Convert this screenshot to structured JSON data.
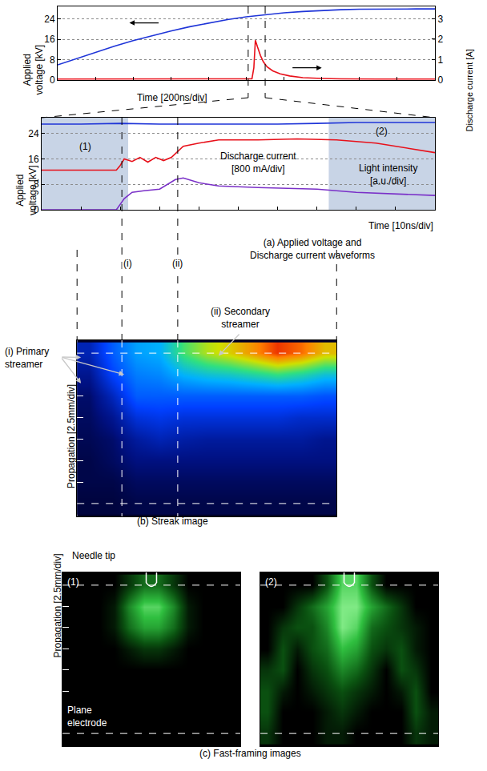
{
  "chart_data": [
    {
      "type": "line",
      "x_label": "Time [200ns/div]",
      "y_label": "Applied voltage [kV]",
      "y2_label": "Discharge current [A]",
      "xlim": [
        0,
        2000
      ],
      "xticks": [
        0,
        200,
        400,
        600,
        800,
        1000,
        1200,
        1400,
        1600,
        1800,
        2000
      ],
      "ylim": [
        0,
        29
      ],
      "yticks": [
        0,
        8,
        16,
        24
      ],
      "y2lim": [
        0,
        3.6
      ],
      "y2ticks": [
        0,
        1,
        2,
        3
      ],
      "grid": true,
      "tick_labels": "y",
      "vlines": [
        1010,
        1100
      ],
      "series": [
        {
          "color": "#1f35d8",
          "x": [
            0,
            100,
            200,
            300,
            400,
            500,
            600,
            700,
            800,
            900,
            1000,
            1100,
            1200,
            1300,
            1400,
            1500,
            1600,
            1700,
            1800,
            1900,
            2000
          ],
          "values": [
            6,
            8.5,
            11,
            13.3,
            15.5,
            17.5,
            19.3,
            21,
            22.5,
            23.8,
            24.9,
            25.8,
            26.5,
            27,
            27.4,
            27.7,
            27.9,
            28,
            28,
            28,
            28
          ]
        },
        {
          "color": "#e8101a",
          "axis": "y2",
          "x": [
            0,
            200,
            400,
            600,
            800,
            1000,
            1030,
            1040,
            1048,
            1060,
            1075,
            1090,
            1110,
            1140,
            1180,
            1230,
            1300,
            1400,
            1500,
            1700,
            2000
          ],
          "values": [
            0.05,
            0.05,
            0.05,
            0.05,
            0.05,
            0.05,
            0.06,
            0.6,
            1.95,
            1.6,
            1.2,
            0.9,
            0.65,
            0.45,
            0.3,
            0.2,
            0.12,
            0.08,
            0.06,
            0.05,
            0.05
          ]
        }
      ]
    },
    {
      "type": "line",
      "x_label": "Time [10ns/div]",
      "y_label": "Applied voltage [kV]",
      "caption": "(a) Applied voltage and Discharge current waveforms",
      "xlim": [
        0,
        100
      ],
      "xticks": [
        0,
        10,
        20,
        30,
        40,
        50,
        60,
        70,
        80,
        90,
        100
      ],
      "ylim": [
        0,
        29
      ],
      "yticks": [
        0,
        8,
        16,
        24
      ],
      "grid": true,
      "tick_labels": "y",
      "annotations": [
        "Discharge current [800 mA/div]",
        "Light intensity [a.u./div]"
      ],
      "regions": [
        {
          "label": "(1)",
          "x": [
            0,
            22
          ]
        },
        {
          "label": "(2)",
          "x": [
            73,
            100
          ]
        }
      ],
      "events": [
        {
          "label": "(i)",
          "x": 20.4
        },
        {
          "label": "(ii)",
          "x": 34.6
        }
      ],
      "series": [
        {
          "color": "#1f35d8",
          "x": [
            0,
            10,
            20,
            30,
            40,
            50,
            60,
            70,
            80,
            90,
            100
          ],
          "values": [
            27,
            27,
            27.2,
            27,
            27,
            27,
            27,
            27.2,
            27.5,
            27.5,
            27.5
          ]
        },
        {
          "color": "#e8101a",
          "x": [
            0,
            19,
            20,
            21,
            23,
            25,
            27,
            29,
            31,
            33,
            36,
            40,
            45,
            55,
            65,
            75,
            85,
            100
          ],
          "values": [
            12.5,
            12.5,
            14,
            16,
            15.2,
            16.5,
            15,
            16.5,
            15.5,
            16.5,
            20,
            21,
            22,
            22,
            22.3,
            22,
            21,
            18
          ]
        },
        {
          "color": "#7a30c8",
          "x": [
            0,
            19,
            21,
            23,
            26,
            30,
            34,
            36,
            40,
            45,
            55,
            70,
            80,
            90,
            100
          ],
          "values": [
            0,
            0,
            3.5,
            5.5,
            6,
            6.5,
            9.5,
            10,
            8.5,
            7.5,
            7,
            6.5,
            5.5,
            5,
            4.5
          ]
        }
      ]
    },
    {
      "type": "heatmap",
      "caption": "(b) Streak image",
      "y_label": "Propagation [2.5mm/div]",
      "annotations": [
        "(i) Primary streamer",
        "(ii) Secondary streamer"
      ],
      "xlim": [
        9,
        75
      ],
      "ylim": [
        19,
        -1.5
      ],
      "yticks": [
        5,
        7.5,
        10,
        12.5,
        15
      ],
      "tick_labels": false,
      "electrodes": [
        0,
        17.5
      ],
      "x": [
        12,
        18,
        24,
        30,
        36,
        42,
        48,
        54,
        60,
        66,
        72
      ],
      "y": [
        0,
        2.5,
        5,
        7.5,
        10,
        12.5,
        15,
        17.5
      ],
      "z": [
        [
          0.15,
          0.3,
          0.42,
          0.45,
          0.62,
          0.72,
          0.78,
          0.86,
          0.95,
          0.9,
          0.8
        ],
        [
          0.1,
          0.25,
          0.36,
          0.38,
          0.46,
          0.5,
          0.52,
          0.56,
          0.6,
          0.56,
          0.5
        ],
        [
          0.06,
          0.16,
          0.3,
          0.3,
          0.3,
          0.3,
          0.3,
          0.3,
          0.3,
          0.3,
          0.28
        ],
        [
          0.05,
          0.1,
          0.2,
          0.22,
          0.2,
          0.2,
          0.2,
          0.2,
          0.2,
          0.18,
          0.18
        ],
        [
          0.04,
          0.06,
          0.12,
          0.15,
          0.13,
          0.12,
          0.12,
          0.12,
          0.12,
          0.12,
          0.1
        ],
        [
          0.03,
          0.05,
          0.08,
          0.08,
          0.08,
          0.08,
          0.08,
          0.08,
          0.08,
          0.08,
          0.08
        ],
        [
          0.03,
          0.03,
          0.05,
          0.05,
          0.05,
          0.05,
          0.05,
          0.05,
          0.05,
          0.05,
          0.05
        ],
        [
          0.02,
          0.02,
          0.03,
          0.03,
          0.03,
          0.03,
          0.03,
          0.03,
          0.03,
          0.03,
          0.03
        ]
      ],
      "zlim": [
        0,
        1
      ]
    },
    {
      "type": "heatmap",
      "title": "(1)",
      "caption": "(c) Fast-framing images",
      "y_label": "Propagation [2.5mm/div]",
      "annotations": [
        "Needle tip",
        "Plane electrode"
      ],
      "xlim": [
        -12,
        12
      ],
      "ylim": [
        19,
        -1.5
      ],
      "yticks": [
        2.5,
        5,
        7.5,
        10,
        12.5
      ],
      "tick_labels": false,
      "electrodes": [
        0,
        17.5
      ],
      "x": [
        -11,
        -9,
        -7,
        -5,
        -3,
        -1,
        1,
        3,
        5,
        7,
        9,
        11
      ],
      "y": [
        0,
        2.5,
        5,
        7.5,
        10,
        12.5,
        15,
        17.5
      ],
      "z": [
        [
          0,
          0,
          0,
          0,
          0.2,
          0.4,
          0.4,
          0.2,
          0,
          0,
          0,
          0
        ],
        [
          0,
          0,
          0,
          0.1,
          0.5,
          0.8,
          0.8,
          0.5,
          0.1,
          0,
          0,
          0
        ],
        [
          0,
          0,
          0,
          0.1,
          0.4,
          0.6,
          0.6,
          0.4,
          0.1,
          0,
          0,
          0
        ],
        [
          0,
          0,
          0,
          0,
          0.1,
          0.2,
          0.2,
          0.1,
          0,
          0,
          0,
          0
        ],
        [
          0,
          0,
          0,
          0,
          0,
          0,
          0,
          0,
          0,
          0,
          0,
          0
        ],
        [
          0,
          0,
          0,
          0,
          0,
          0,
          0,
          0,
          0,
          0,
          0,
          0
        ],
        [
          0,
          0,
          0,
          0,
          0,
          0,
          0,
          0,
          0,
          0,
          0,
          0
        ],
        [
          0,
          0,
          0,
          0,
          0,
          0,
          0,
          0,
          0,
          0,
          0,
          0
        ]
      ],
      "zlim": [
        0,
        1
      ]
    },
    {
      "type": "heatmap",
      "title": "(2)",
      "xlim": [
        -12,
        12
      ],
      "ylim": [
        19,
        -1.5
      ],
      "tick_labels": false,
      "electrodes": [
        0,
        17.5
      ],
      "x": [
        -11,
        -9,
        -7,
        -5,
        -3,
        -1,
        1,
        3,
        5,
        7,
        9,
        11
      ],
      "y": [
        0,
        2.5,
        5,
        7.5,
        10,
        12.5,
        15,
        17.5
      ],
      "z": [
        [
          0,
          0,
          0,
          0,
          0.3,
          0.8,
          0.8,
          0.3,
          0,
          0,
          0,
          0
        ],
        [
          0,
          0,
          0.2,
          0.4,
          0.6,
          0.9,
          0.9,
          0.6,
          0.4,
          0.2,
          0,
          0
        ],
        [
          0,
          0.2,
          0.3,
          0.3,
          0.5,
          0.9,
          0.8,
          0.4,
          0.3,
          0.2,
          0.1,
          0
        ],
        [
          0,
          0.3,
          0.1,
          0.3,
          0.4,
          0.7,
          0.6,
          0.3,
          0.2,
          0.3,
          0.1,
          0
        ],
        [
          0.2,
          0.3,
          0,
          0.2,
          0.3,
          0.5,
          0.4,
          0.2,
          0,
          0.3,
          0.2,
          0
        ],
        [
          0.3,
          0.1,
          0,
          0.1,
          0.2,
          0.3,
          0.2,
          0.1,
          0,
          0.1,
          0.3,
          0
        ],
        [
          0.3,
          0,
          0,
          0,
          0.1,
          0.2,
          0.1,
          0,
          0,
          0,
          0.3,
          0.1
        ],
        [
          0.2,
          0,
          0,
          0,
          0.1,
          0.1,
          0,
          0,
          0,
          0,
          0.2,
          0.1
        ]
      ],
      "zlim": [
        0,
        1
      ]
    }
  ]
}
